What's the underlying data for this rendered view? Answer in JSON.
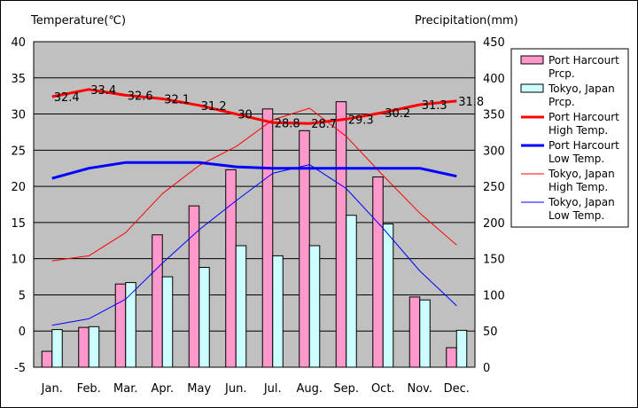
{
  "chart_data": {
    "type": "bar",
    "title": "",
    "ylabel_left": "Temperature(℃)",
    "ylabel_right": "Precipitation(mm)",
    "categories": [
      "Jan.",
      "Feb.",
      "Mar.",
      "Apr.",
      "May",
      "Jun.",
      "Jul.",
      "Aug.",
      "Sep.",
      "Oct.",
      "Nov.",
      "Dec."
    ],
    "ylim_left": [
      -5,
      40
    ],
    "ylim_right": [
      0,
      450
    ],
    "yticks_left": [
      -5,
      0,
      5,
      10,
      15,
      20,
      25,
      30,
      35,
      40
    ],
    "yticks_right": [
      0,
      50,
      100,
      150,
      200,
      250,
      300,
      350,
      400,
      450
    ],
    "grid": true,
    "legend_position": "right",
    "background_color": "#c0c0c0",
    "series": [
      {
        "name": "Port Harcourt Prcp.",
        "legend_lines": [
          "Port Harcourt",
          "Prcp."
        ],
        "kind": "bar",
        "axis": "right",
        "color": "#ff99cc",
        "values": [
          22,
          55,
          115,
          183,
          223,
          273,
          357,
          327,
          367,
          263,
          97,
          27
        ]
      },
      {
        "name": "Tokyo, Japan Prcp.",
        "legend_lines": [
          "Tokyo, Japan",
          "Prcp."
        ],
        "kind": "bar",
        "axis": "right",
        "color": "#ccffff",
        "values": [
          52,
          56,
          117,
          125,
          138,
          168,
          154,
          168,
          210,
          198,
          93,
          51
        ]
      },
      {
        "name": "Port Harcourt High Temp.",
        "legend_lines": [
          "Port Harcourt",
          "High Temp."
        ],
        "kind": "line",
        "axis": "left",
        "color": "#ff0000",
        "width": 3,
        "values": [
          32.4,
          33.4,
          32.6,
          32.1,
          31.2,
          30,
          28.8,
          28.7,
          29.3,
          30.2,
          31.3,
          31.8
        ],
        "labels": [
          "32.4",
          "33.4",
          "32.6",
          "32.1",
          "31.2",
          "30",
          "28.8",
          "28.7",
          "29.3",
          "30.2",
          "31.3",
          "31.8"
        ]
      },
      {
        "name": "Port Harcourt Low Temp.",
        "legend_lines": [
          "Port Harcourt",
          "Low Temp."
        ],
        "kind": "line",
        "axis": "left",
        "color": "#0000ff",
        "width": 3,
        "values": [
          21.1,
          22.5,
          23.3,
          23.3,
          23.3,
          22.7,
          22.5,
          22.5,
          22.5,
          22.5,
          22.5,
          21.4
        ]
      },
      {
        "name": "Tokyo, Japan High Temp.",
        "legend_lines": [
          "Tokyo, Japan",
          "High Temp."
        ],
        "kind": "line",
        "axis": "left",
        "color": "#ff0000",
        "width": 1,
        "values": [
          9.7,
          10.4,
          13.6,
          19.0,
          22.9,
          25.5,
          29.2,
          30.8,
          26.9,
          21.5,
          16.3,
          11.9
        ]
      },
      {
        "name": "Tokyo, Japan Low Temp.",
        "legend_lines": [
          "Tokyo, Japan",
          "Low Temp."
        ],
        "kind": "line",
        "axis": "left",
        "color": "#0000ff",
        "width": 1,
        "values": [
          0.8,
          1.7,
          4.4,
          9.4,
          14.0,
          18.0,
          21.8,
          23.0,
          19.7,
          14.2,
          8.3,
          3.5
        ]
      }
    ]
  }
}
